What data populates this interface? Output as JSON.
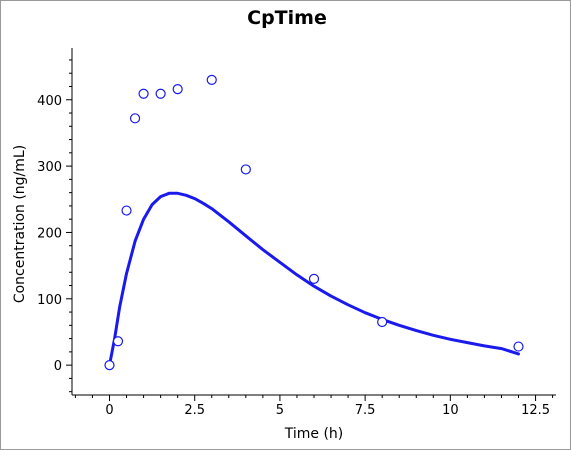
{
  "chart_data": {
    "type": "scatter",
    "title": "CpTime",
    "xlabel": "Time (h)",
    "ylabel": "Concentration (ng/mL)",
    "xlim": [
      -1.1,
      13.1
    ],
    "ylim": [
      -45,
      478
    ],
    "x_ticks": [
      0,
      2.5,
      5,
      7.5,
      10,
      12.5
    ],
    "x_tick_labels": [
      "0",
      "2.5",
      "5",
      "7.5",
      "10",
      "12.5"
    ],
    "y_ticks": [
      0,
      100,
      200,
      300,
      400
    ],
    "y_tick_labels": [
      "0",
      "100",
      "200",
      "300",
      "400"
    ],
    "grid": false,
    "colors": {
      "series": "#1a1aee",
      "axis": "#000000"
    },
    "series": [
      {
        "type": "scatter",
        "marker": "open-circle",
        "x": [
          0,
          0.25,
          0.5,
          0.75,
          1,
          1.5,
          2,
          3,
          4,
          6,
          8,
          12
        ],
        "y": [
          0,
          36,
          233,
          372,
          409,
          409,
          416,
          430,
          295,
          130,
          65,
          28
        ]
      },
      {
        "type": "line",
        "x": [
          0,
          0.15,
          0.3,
          0.5,
          0.75,
          1,
          1.25,
          1.5,
          1.75,
          2,
          2.25,
          2.5,
          2.75,
          3,
          3.5,
          4,
          4.5,
          5,
          5.5,
          6,
          6.5,
          7,
          7.5,
          8,
          8.5,
          9,
          9.5,
          10,
          10.5,
          11,
          11.5,
          12
        ],
        "y": [
          0,
          40,
          88,
          138,
          187,
          220,
          242,
          254,
          259,
          259,
          256,
          251,
          244,
          236,
          216,
          195,
          174,
          155,
          136,
          119,
          104,
          91,
          79,
          69,
          60,
          52,
          45,
          39,
          34,
          29,
          25,
          17
        ]
      }
    ]
  }
}
